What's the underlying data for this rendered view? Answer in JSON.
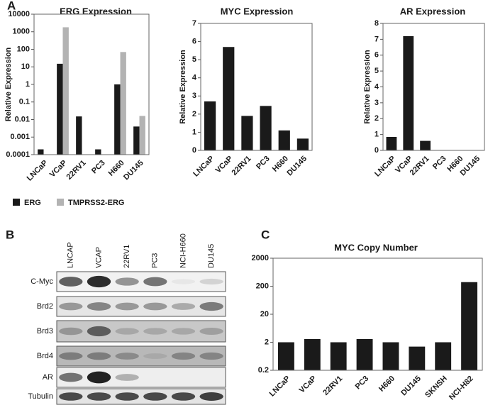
{
  "panel_labels": [
    "A",
    "B",
    "C"
  ],
  "chart_data": [
    {
      "type": "bar",
      "title": "ERG Expression",
      "y_label": "Relative Expression",
      "categories": [
        "LNCaP",
        "VCaP",
        "22RV1",
        "PC3",
        "H660",
        "DU145"
      ],
      "series": [
        {
          "name": "ERG",
          "color": "#1a1a1a",
          "values": [
            0.0002,
            15,
            0.015,
            0.0002,
            1,
            0.004
          ]
        },
        {
          "name": "TMPRSS2-ERG",
          "color": "#b3b3b3",
          "values": [
            null,
            1800,
            null,
            null,
            70,
            0.016
          ]
        }
      ],
      "log_scale": true,
      "ylim": [
        0.0001,
        10000
      ],
      "yticks": [
        0.0001,
        0.001,
        0.01,
        0.1,
        1,
        10,
        100,
        1000,
        10000
      ],
      "legend": "bottom"
    },
    {
      "type": "bar",
      "title": "MYC Expression",
      "y_label": "Relative Expression",
      "categories": [
        "LNCaP",
        "VCaP",
        "22RV1",
        "PC3",
        "H660",
        "DU145"
      ],
      "values": [
        2.7,
        5.7,
        1.9,
        2.45,
        1.1,
        0.65
      ],
      "color": "#1a1a1a",
      "ylim": [
        0,
        7
      ],
      "yticks": [
        0,
        1,
        2,
        3,
        4,
        5,
        6,
        7
      ]
    },
    {
      "type": "bar",
      "title": "AR Expression",
      "y_label": "Relative Expression",
      "categories": [
        "LNCaP",
        "VCaP",
        "22RV1",
        "PC3",
        "H660",
        "DU145"
      ],
      "values": [
        0.85,
        7.2,
        0.6,
        0,
        0,
        0
      ],
      "color": "#1a1a1a",
      "ylim": [
        0,
        8
      ],
      "yticks": [
        0,
        1,
        2,
        3,
        4,
        5,
        6,
        7,
        8
      ]
    },
    {
      "type": "bar",
      "title": "MYC Copy Number",
      "categories": [
        "LNCaP",
        "VCaP",
        "22RV1",
        "PC3",
        "H660",
        "DU145",
        "SKNSH",
        "NCI-H82"
      ],
      "values": [
        2,
        2.6,
        2,
        2.6,
        2,
        1.4,
        2,
        280
      ],
      "color": "#1a1a1a",
      "log_scale": true,
      "ylim": [
        0.2,
        2000
      ],
      "yticks": [
        0.2,
        2,
        20,
        200,
        2000
      ]
    }
  ],
  "blot": {
    "lanes": [
      "LNCAP",
      "VCAP",
      "22RV1",
      "PC3",
      "NCI-H660",
      "DU145"
    ],
    "rows": [
      "C-Myc",
      "Brd2",
      "Brd3",
      "Brd4",
      "AR",
      "Tubulin"
    ]
  }
}
